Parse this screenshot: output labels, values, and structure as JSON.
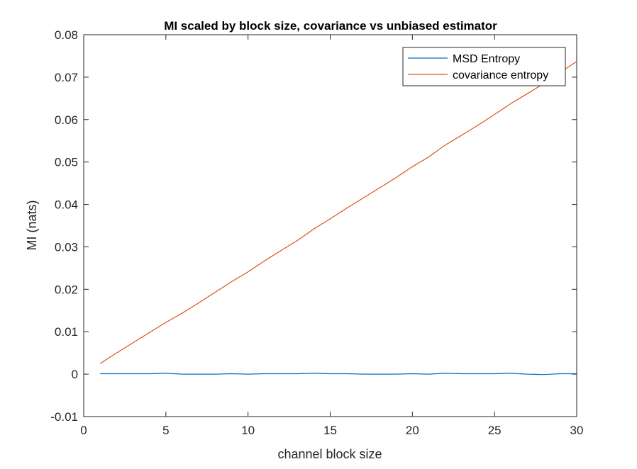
{
  "chart_data": {
    "type": "line",
    "title": "MI scaled by block size, covariance vs unbiased estimator",
    "xlabel": "channel block size",
    "ylabel": "MI (nats)",
    "xlim": [
      0,
      30
    ],
    "ylim": [
      -0.01,
      0.08
    ],
    "xticks": [
      0,
      5,
      10,
      15,
      20,
      25,
      30
    ],
    "yticks": [
      -0.01,
      0,
      0.01,
      0.02,
      0.03,
      0.04,
      0.05,
      0.06,
      0.07,
      0.08
    ],
    "xtick_labels": [
      "0",
      "5",
      "10",
      "15",
      "20",
      "25",
      "30"
    ],
    "ytick_labels": [
      "-0.01",
      "0",
      "0.01",
      "0.02",
      "0.03",
      "0.04",
      "0.05",
      "0.06",
      "0.07",
      "0.08"
    ],
    "grid": false,
    "legend_position": "top-right",
    "x": [
      1,
      2,
      3,
      4,
      5,
      6,
      7,
      8,
      9,
      10,
      11,
      12,
      13,
      14,
      15,
      16,
      17,
      18,
      19,
      20,
      21,
      22,
      23,
      24,
      25,
      26,
      27,
      28,
      29,
      30
    ],
    "series": [
      {
        "name": "MSD Entropy",
        "color": "#0072bd",
        "values": [
          0.0001,
          0.0001,
          0.0001,
          0.0001,
          0.0002,
          0.0,
          0.0,
          0.0,
          0.0001,
          0.0,
          0.0001,
          0.0001,
          0.0001,
          0.0002,
          0.0001,
          0.0001,
          0.0,
          0.0,
          0.0,
          0.0001,
          0.0,
          0.0002,
          0.0001,
          0.0001,
          0.0001,
          0.0002,
          0.0,
          -0.0001,
          0.0001,
          0.0001
        ]
      },
      {
        "name": "covariance entropy",
        "color": "#d95319",
        "values": [
          0.0025,
          0.005,
          0.0074,
          0.0098,
          0.0122,
          0.0144,
          0.0168,
          0.0193,
          0.0218,
          0.0241,
          0.0267,
          0.0291,
          0.0315,
          0.0342,
          0.0366,
          0.0391,
          0.0415,
          0.0439,
          0.0463,
          0.0489,
          0.0512,
          0.054,
          0.0563,
          0.0587,
          0.0612,
          0.0638,
          0.0661,
          0.0685,
          0.0711,
          0.0737
        ]
      }
    ]
  }
}
